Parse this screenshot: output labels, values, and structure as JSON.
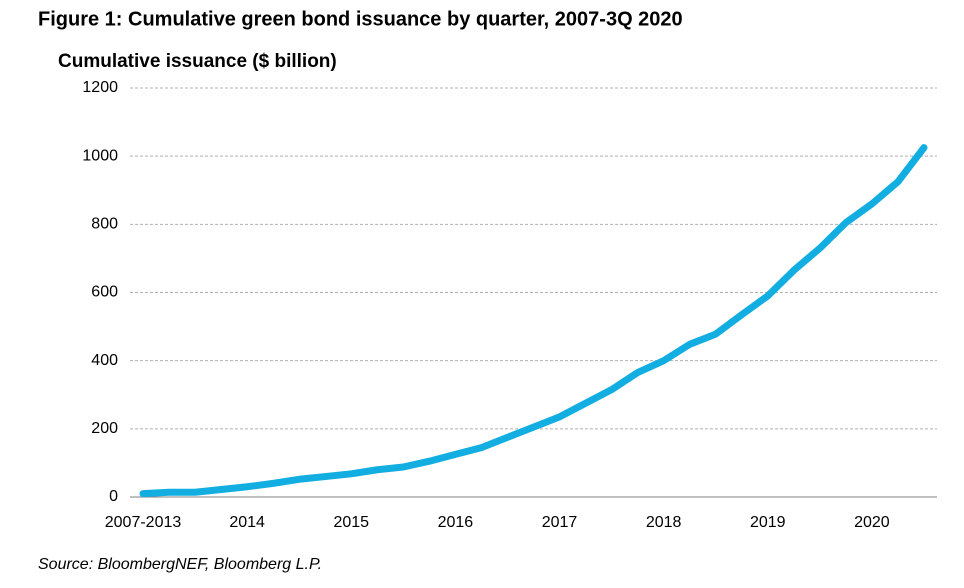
{
  "chart_data": {
    "type": "line",
    "title": "Figure 1: Cumulative green bond issuance by quarter, 2007-3Q 2020",
    "y_axis_label": "Cumulative issuance ($ billion)",
    "source": "Source: BloombergNEF, Bloomberg L.P.",
    "categories": [
      "2007-2013",
      null,
      null,
      null,
      "2014",
      null,
      null,
      null,
      "2015",
      null,
      null,
      null,
      "2016",
      null,
      null,
      null,
      "2017",
      null,
      null,
      null,
      "2018",
      null,
      null,
      null,
      "2019",
      null,
      null,
      null,
      "2020",
      null,
      null
    ],
    "series": [
      {
        "name": "Cumulative issuance",
        "color": "#12aee2",
        "values": [
          10,
          14,
          14,
          22,
          30,
          40,
          52,
          60,
          68,
          80,
          88,
          105,
          125,
          145,
          175,
          205,
          235,
          275,
          315,
          365,
          400,
          448,
          478,
          535,
          590,
          665,
          730,
          805,
          860,
          925,
          1025
        ]
      }
    ],
    "ylim": [
      0,
      1200
    ],
    "yticks": [
      0,
      200,
      400,
      600,
      800,
      1000,
      1200
    ],
    "grid": true
  }
}
